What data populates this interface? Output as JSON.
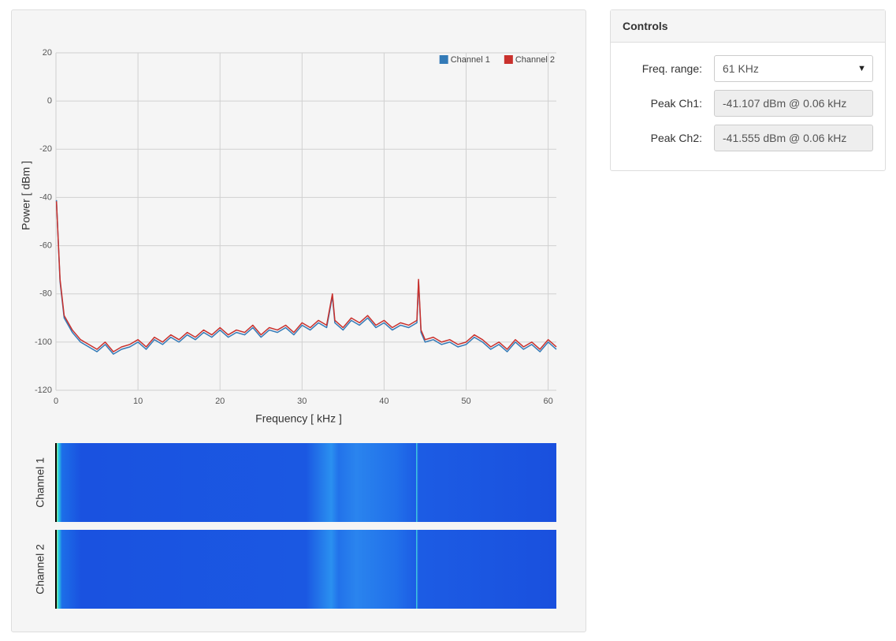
{
  "chart_data": {
    "type": "line",
    "xlabel": "Frequency [ kHz ]",
    "ylabel": "Power [ dBm ]",
    "x": [
      0.06,
      0.5,
      1,
      2,
      3,
      4,
      5,
      6,
      7,
      8,
      9,
      10,
      11,
      12,
      13,
      14,
      15,
      16,
      17,
      18,
      19,
      20,
      21,
      22,
      23,
      24,
      25,
      26,
      27,
      28,
      29,
      30,
      31,
      32,
      33,
      33.7,
      34,
      35,
      36,
      37,
      38,
      39,
      40,
      41,
      42,
      43,
      44,
      44.2,
      44.5,
      45,
      46,
      47,
      48,
      49,
      50,
      51,
      52,
      53,
      54,
      55,
      56,
      57,
      58,
      59,
      60,
      61
    ],
    "series": [
      {
        "name": "Channel 1",
        "color": "#337ab7",
        "values": [
          -41.1,
          -75,
          -90,
          -96,
          -100,
          -102,
          -104,
          -101,
          -105,
          -103,
          -102,
          -100,
          -103,
          -99,
          -101,
          -98,
          -100,
          -97,
          -99,
          -96,
          -98,
          -95,
          -98,
          -96,
          -97,
          -94,
          -98,
          -95,
          -96,
          -94,
          -97,
          -93,
          -95,
          -92,
          -94,
          -81,
          -92,
          -95,
          -91,
          -93,
          -90,
          -94,
          -92,
          -95,
          -93,
          -94,
          -92,
          -75,
          -96,
          -100,
          -99,
          -101,
          -100,
          -102,
          -101,
          -98,
          -100,
          -103,
          -101,
          -104,
          -100,
          -103,
          -101,
          -104,
          -100,
          -103
        ]
      },
      {
        "name": "Channel 2",
        "color": "#c9302c",
        "values": [
          -41.6,
          -74,
          -89,
          -95,
          -99,
          -101,
          -103,
          -100,
          -104,
          -102,
          -101,
          -99,
          -102,
          -98,
          -100,
          -97,
          -99,
          -96,
          -98,
          -95,
          -97,
          -94,
          -97,
          -95,
          -96,
          -93,
          -97,
          -94,
          -95,
          -93,
          -96,
          -92,
          -94,
          -91,
          -93,
          -80,
          -91,
          -94,
          -90,
          -92,
          -89,
          -93,
          -91,
          -94,
          -92,
          -93,
          -91,
          -74,
          -95,
          -99,
          -98,
          -100,
          -99,
          -101,
          -100,
          -97,
          -99,
          -102,
          -100,
          -103,
          -99,
          -102,
          -100,
          -103,
          -99,
          -102
        ]
      }
    ],
    "xlim": [
      0,
      61
    ],
    "xticks": [
      0,
      10,
      20,
      30,
      40,
      50,
      60
    ],
    "ylim": [
      -120,
      20
    ],
    "yticks": [
      -120,
      -100,
      -80,
      -60,
      -40,
      -20,
      0,
      20
    ],
    "grid": true,
    "legend": "top-right"
  },
  "waterfall": {
    "labels": [
      "Channel 1",
      "Channel 2"
    ]
  },
  "controls": {
    "title": "Controls",
    "fields": [
      {
        "label": "Freq. range:",
        "value": "61 KHz"
      },
      {
        "label": "Peak Ch1:",
        "value": "-41.107 dBm @ 0.06 kHz"
      },
      {
        "label": "Peak Ch2:",
        "value": "-41.555 dBm @ 0.06 kHz"
      }
    ]
  }
}
